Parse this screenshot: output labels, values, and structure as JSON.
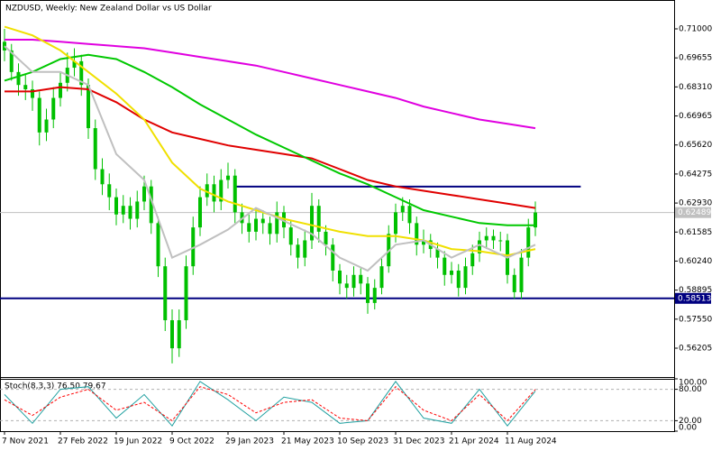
{
  "chart_data": {
    "type": "candlestick",
    "title": "NZDUSD, Weekly:  New Zealand Dollar vs US Dollar",
    "categories": [
      "7 Nov 2021",
      null,
      null,
      null,
      null,
      null,
      null,
      null,
      "27 Feb 2022",
      null,
      null,
      null,
      null,
      null,
      null,
      null,
      "19 Jun 2022",
      null,
      null,
      null,
      null,
      null,
      null,
      null,
      "9 Oct 2022",
      null,
      null,
      null,
      null,
      null,
      null,
      null,
      "29 Jan 2023",
      null,
      null,
      null,
      null,
      null,
      null,
      null,
      "21 May 2023",
      null,
      null,
      null,
      null,
      null,
      null,
      null,
      "10 Sep 2023",
      null,
      null,
      null,
      null,
      null,
      null,
      null,
      "31 Dec 2023",
      null,
      null,
      null,
      null,
      null,
      null,
      null,
      "21 Apr 2024",
      null,
      null,
      null,
      null,
      null,
      null,
      null,
      "11 Aug 2024",
      null,
      null,
      null,
      null
    ],
    "open": [
      0.704,
      0.7,
      0.69,
      0.684,
      0.682,
      0.678,
      0.662,
      0.668,
      0.678,
      0.685,
      0.692,
      0.695,
      0.684,
      0.664,
      0.645,
      0.638,
      0.632,
      0.624,
      0.628,
      0.622,
      0.63,
      0.637,
      0.62,
      0.6,
      0.575,
      0.562,
      0.575,
      0.6,
      0.618,
      0.632,
      0.638,
      0.63,
      0.64,
      0.642,
      0.625,
      0.62,
      0.616,
      0.622,
      0.62,
      0.615,
      0.625,
      0.618,
      0.61,
      0.604,
      0.612,
      0.628,
      0.616,
      0.61,
      0.598,
      0.592,
      0.59,
      0.596,
      0.592,
      0.583,
      0.59,
      0.6,
      0.615,
      0.625,
      0.628,
      0.62,
      0.61,
      0.612,
      0.608,
      0.604,
      0.596,
      0.598,
      0.59,
      0.6,
      0.606,
      0.612,
      0.614,
      0.612,
      0.612,
      0.596,
      0.588,
      0.604,
      0.618
    ],
    "high": [
      0.71,
      0.703,
      0.694,
      0.689,
      0.686,
      0.681,
      0.673,
      0.683,
      0.69,
      0.699,
      0.701,
      0.698,
      0.687,
      0.668,
      0.65,
      0.643,
      0.636,
      0.633,
      0.632,
      0.635,
      0.642,
      0.64,
      0.623,
      0.604,
      0.58,
      0.58,
      0.605,
      0.623,
      0.637,
      0.643,
      0.642,
      0.645,
      0.648,
      0.645,
      0.629,
      0.624,
      0.627,
      0.626,
      0.623,
      0.63,
      0.628,
      0.621,
      0.613,
      0.617,
      0.634,
      0.631,
      0.619,
      0.613,
      0.601,
      0.596,
      0.6,
      0.599,
      0.595,
      0.594,
      0.604,
      0.619,
      0.629,
      0.632,
      0.631,
      0.623,
      0.617,
      0.615,
      0.611,
      0.607,
      0.602,
      0.601,
      0.604,
      0.61,
      0.616,
      0.618,
      0.617,
      0.616,
      0.615,
      0.599,
      0.608,
      0.622,
      0.63
    ],
    "low": [
      0.695,
      0.686,
      0.679,
      0.677,
      0.672,
      0.656,
      0.658,
      0.664,
      0.674,
      0.681,
      0.688,
      0.679,
      0.659,
      0.64,
      0.633,
      0.626,
      0.619,
      0.62,
      0.617,
      0.618,
      0.626,
      0.615,
      0.595,
      0.57,
      0.555,
      0.558,
      0.571,
      0.596,
      0.614,
      0.628,
      0.625,
      0.626,
      0.636,
      0.62,
      0.615,
      0.611,
      0.612,
      0.615,
      0.61,
      0.611,
      0.613,
      0.605,
      0.599,
      0.6,
      0.608,
      0.611,
      0.605,
      0.593,
      0.587,
      0.585,
      0.586,
      0.587,
      0.578,
      0.58,
      0.587,
      0.597,
      0.611,
      0.621,
      0.615,
      0.605,
      0.606,
      0.604,
      0.599,
      0.591,
      0.592,
      0.586,
      0.587,
      0.596,
      0.602,
      0.608,
      0.608,
      0.607,
      0.592,
      0.585,
      0.585,
      0.6,
      0.614
    ],
    "close": [
      0.7,
      0.69,
      0.684,
      0.682,
      0.678,
      0.662,
      0.668,
      0.678,
      0.685,
      0.692,
      0.695,
      0.684,
      0.664,
      0.645,
      0.638,
      0.632,
      0.624,
      0.628,
      0.622,
      0.63,
      0.637,
      0.62,
      0.6,
      0.575,
      0.562,
      0.575,
      0.6,
      0.618,
      0.632,
      0.638,
      0.63,
      0.64,
      0.642,
      0.625,
      0.62,
      0.616,
      0.622,
      0.62,
      0.615,
      0.625,
      0.618,
      0.61,
      0.604,
      0.612,
      0.628,
      0.616,
      0.61,
      0.598,
      0.592,
      0.59,
      0.596,
      0.592,
      0.583,
      0.59,
      0.6,
      0.615,
      0.625,
      0.628,
      0.62,
      0.61,
      0.612,
      0.608,
      0.604,
      0.596,
      0.598,
      0.59,
      0.6,
      0.606,
      0.612,
      0.614,
      0.612,
      0.612,
      0.596,
      0.588,
      0.604,
      0.618,
      0.6249
    ],
    "color": "#00c000",
    "ylim": [
      0.54868,
      0.72337
    ],
    "yticks": [
      {
        "value": 0.71,
        "label": "0.71000"
      },
      {
        "value": 0.69655,
        "label": "0.69655"
      },
      {
        "value": 0.6831,
        "label": "0.68310"
      },
      {
        "value": 0.66965,
        "label": "0.66965"
      },
      {
        "value": 0.6562,
        "label": "0.65620"
      },
      {
        "value": 0.64275,
        "label": "0.64275"
      },
      {
        "value": 0.6293,
        "label": "0.62930"
      },
      {
        "value": 0.61585,
        "label": "0.61585"
      },
      {
        "value": 0.6024,
        "label": "0.60240"
      },
      {
        "value": 0.58895,
        "label": "0.58895"
      },
      {
        "value": 0.5755,
        "label": "0.57550"
      },
      {
        "value": 0.56205,
        "label": "0.56205"
      }
    ],
    "ma_x": [
      0,
      4,
      8,
      12,
      16,
      20,
      24,
      28,
      32,
      36,
      40,
      44,
      48,
      52,
      56,
      60,
      64,
      68,
      72,
      76
    ],
    "moving_averages": [
      {
        "color": "#e000e0",
        "values": [
          0.705,
          0.705,
          0.704,
          0.703,
          0.702,
          0.701,
          0.699,
          0.697,
          0.695,
          0.693,
          0.69,
          0.687,
          0.684,
          0.681,
          0.678,
          0.674,
          0.671,
          0.668,
          0.666,
          0.664
        ]
      },
      {
        "color": "#e00000",
        "values": [
          0.681,
          0.681,
          0.683,
          0.682,
          0.676,
          0.668,
          0.662,
          0.659,
          0.656,
          0.654,
          0.652,
          0.65,
          0.645,
          0.64,
          0.637,
          0.635,
          0.633,
          0.631,
          0.629,
          0.627
        ]
      },
      {
        "color": "#00c800",
        "values": [
          0.686,
          0.69,
          0.696,
          0.698,
          0.696,
          0.69,
          0.683,
          0.675,
          0.668,
          0.661,
          0.655,
          0.649,
          0.643,
          0.638,
          0.632,
          0.626,
          0.623,
          0.62,
          0.619,
          0.619
        ]
      },
      {
        "color": "#f0e000",
        "values": [
          0.711,
          0.707,
          0.7,
          0.69,
          0.68,
          0.668,
          0.648,
          0.636,
          0.63,
          0.626,
          0.622,
          0.619,
          0.616,
          0.614,
          0.614,
          0.612,
          0.608,
          0.607,
          0.605,
          0.608
        ]
      },
      {
        "color": "#c0c0c0",
        "values": [
          0.702,
          0.69,
          0.69,
          0.684,
          0.652,
          0.64,
          0.604,
          0.61,
          0.617,
          0.627,
          0.621,
          0.615,
          0.604,
          0.598,
          0.61,
          0.612,
          0.604,
          0.61,
          0.604,
          0.61
        ]
      }
    ],
    "levels": [
      {
        "value": 0.6369,
        "color": "#000080",
        "x_range": [
          33,
          82.5
        ]
      },
      {
        "value": 0.62489,
        "label": "0.62489",
        "color": "#c0c0c0",
        "text_color": "#ffffff"
      },
      {
        "value": 0.58513,
        "label": "0.58513",
        "color": "#000080",
        "text_color": "#ffffff"
      }
    ],
    "indicator": {
      "title": "Stoch(8,3,3) 76.50 79.67",
      "ylim": [
        0,
        100
      ],
      "yticks": [
        {
          "value": 0,
          "label": "0.00"
        },
        {
          "value": 20,
          "label": "20.00"
        },
        {
          "value": 80,
          "label": "80.00"
        },
        {
          "value": 100,
          "label": "100.00"
        }
      ],
      "series": [
        {
          "color": "#20a0a0",
          "values": [
            70,
            15,
            80,
            85,
            25,
            70,
            10,
            95,
            60,
            20,
            65,
            55,
            15,
            20,
            95,
            25,
            15,
            80,
            10,
            76.5
          ]
        },
        {
          "color": "#ff0000",
          "dashed": true,
          "values": [
            60,
            30,
            65,
            80,
            40,
            55,
            20,
            85,
            70,
            35,
            55,
            60,
            25,
            20,
            85,
            40,
            20,
            70,
            20,
            79.67
          ]
        }
      ]
    }
  }
}
